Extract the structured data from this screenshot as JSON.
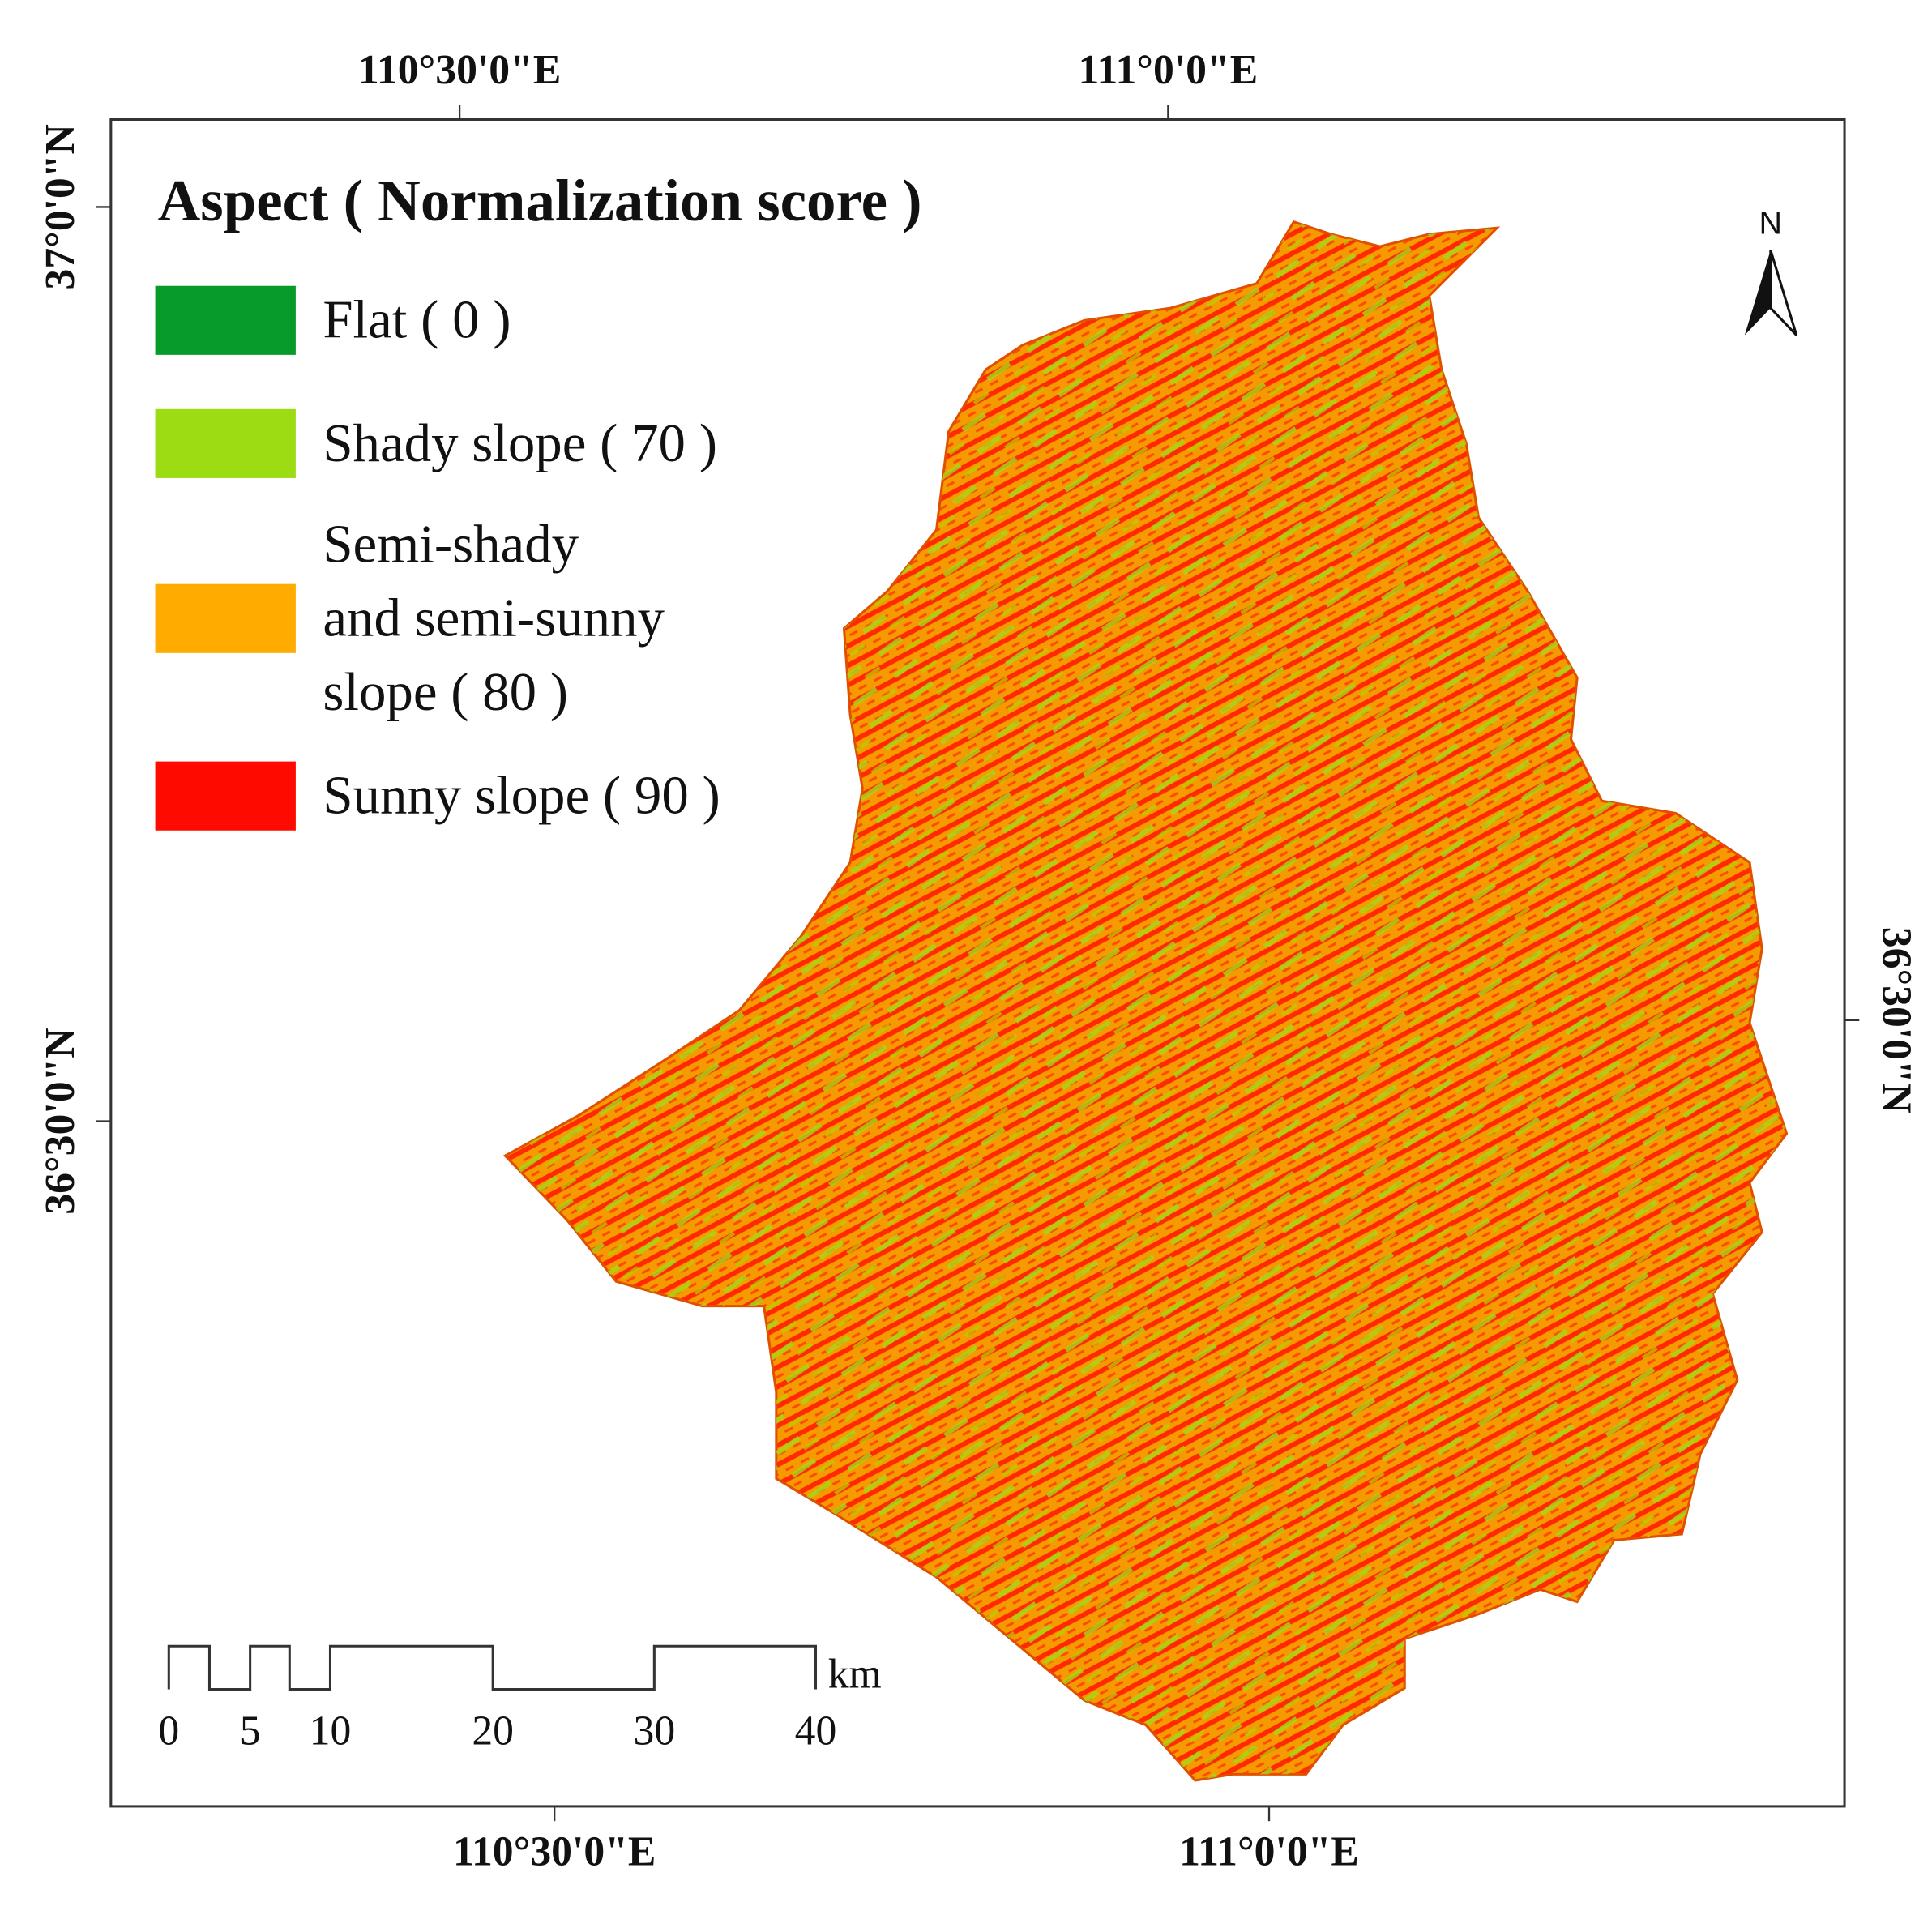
{
  "map": {
    "legend": {
      "title": "Aspect  ( Normalization score )",
      "items": [
        {
          "lines": [
            "Flat ( 0 )"
          ],
          "color": "#079b2a"
        },
        {
          "lines": [
            "Shady slope ( 70 )"
          ],
          "color": "#9ddc12"
        },
        {
          "lines": [
            "Semi-shady",
            "and semi-sunny",
            "slope ( 80 )"
          ],
          "color": "#ffab00"
        },
        {
          "lines": [
            "Sunny slope ( 90 )"
          ],
          "color": "#ff0a00"
        }
      ]
    },
    "coordinates": {
      "top": [
        "110°30'0\"E",
        "111°0'0\"E"
      ],
      "bottom": [
        "110°30'0\"E",
        "111°0'0\"E"
      ],
      "left": [
        "37°0'0\"N",
        "36°30'0\"N"
      ],
      "right": [
        "36°30'0\"N"
      ]
    },
    "scale_bar": {
      "labels": [
        "0",
        "5",
        "10",
        "20",
        "30",
        "40"
      ],
      "unit": "km"
    },
    "north_arrow": "N"
  }
}
